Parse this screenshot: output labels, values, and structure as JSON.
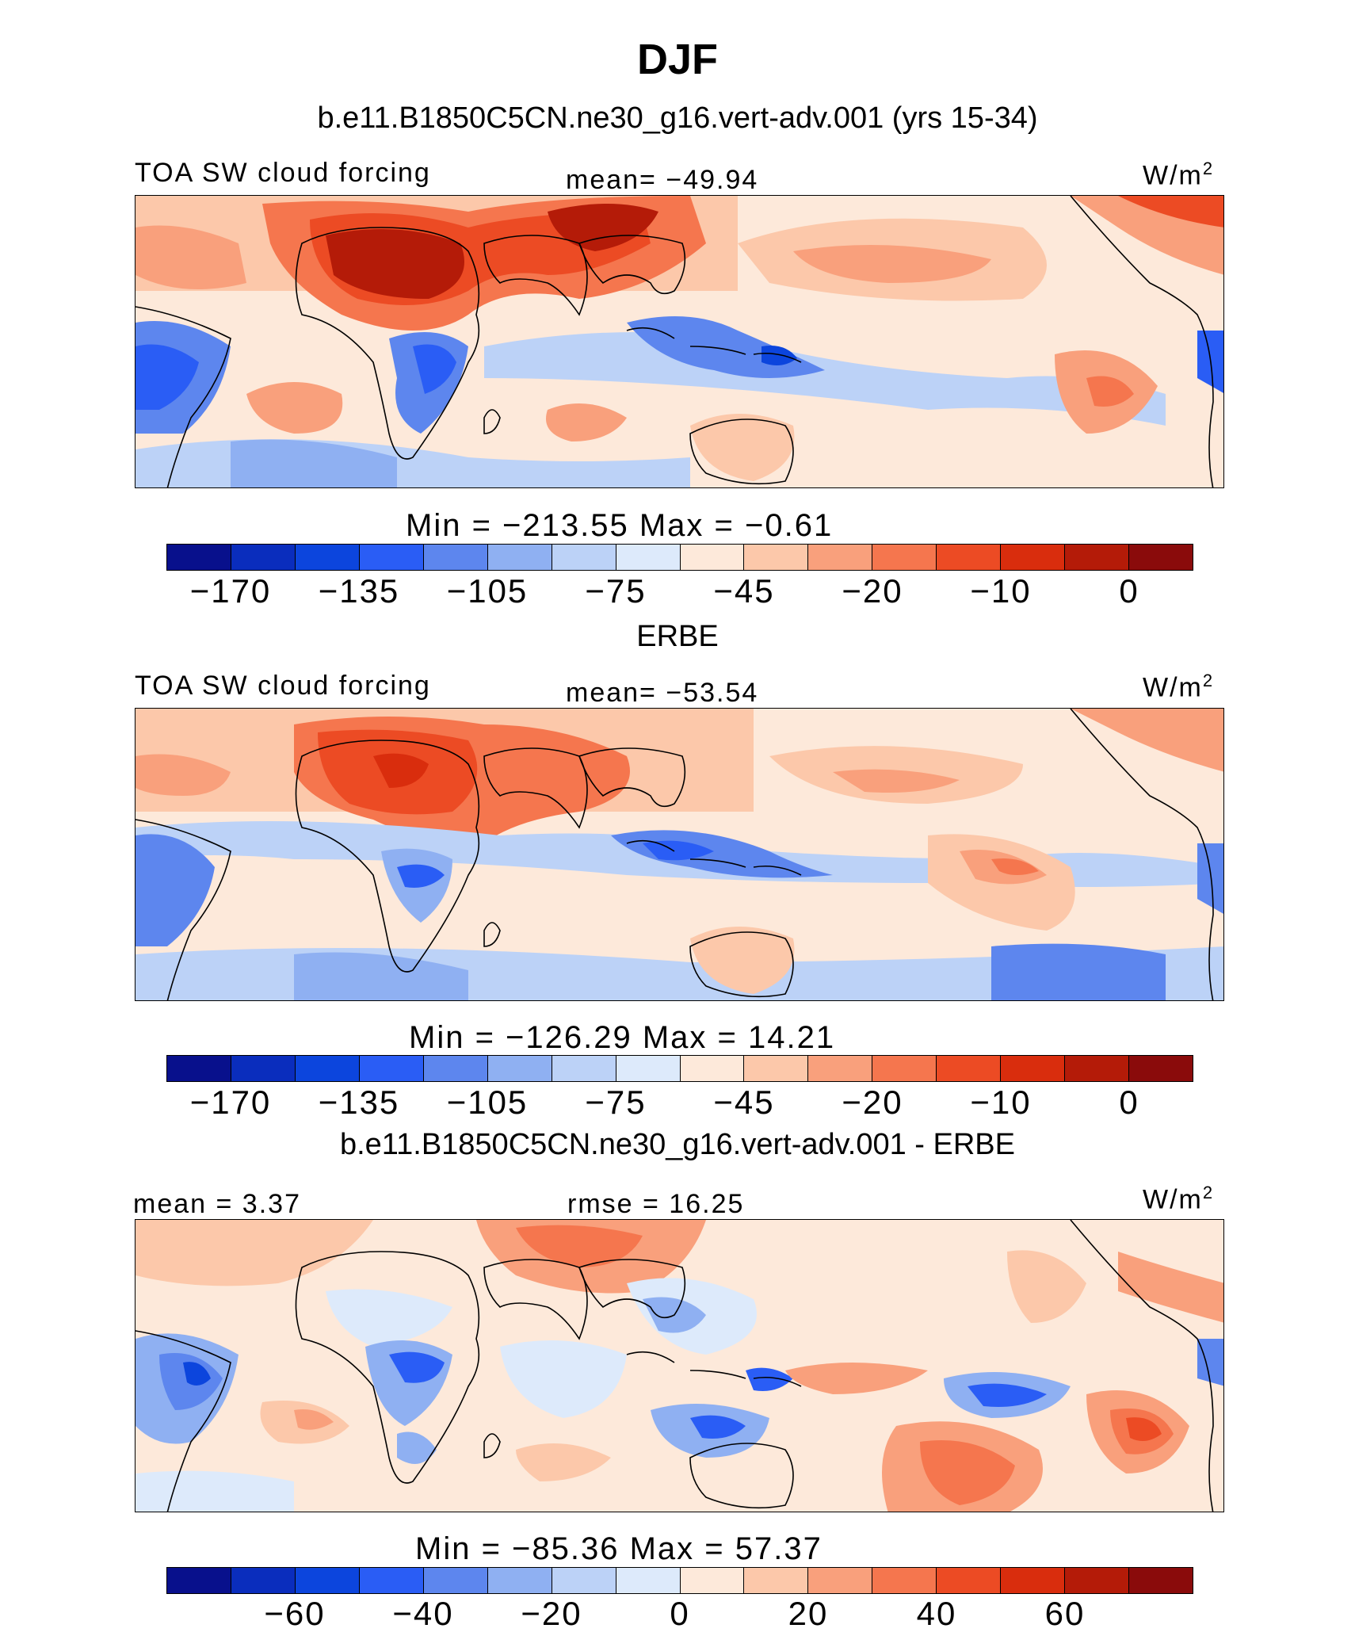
{
  "title": "DJF",
  "panels": [
    {
      "id": "model",
      "heading": "b.e11.B1850C5CN.ne30_g16.vert-adv.001 (yrs 15-34)",
      "left_label": "TOA SW cloud forcing",
      "center_label": "mean=  −49.94",
      "units": "W/m",
      "units_sup": "2",
      "stats": "Min  =  −213.55  Max  =   −0.61",
      "colorbar": {
        "colors": [
          "#08108c",
          "#0a2dbd",
          "#0c45dd",
          "#2a5df5",
          "#5d86ee",
          "#8fb0f2",
          "#bcd2f7",
          "#ddeafb",
          "#fde9da",
          "#fcc8aa",
          "#f9a07c",
          "#f5764e",
          "#ec4b24",
          "#d92d0d",
          "#b41b08",
          "#8a0b0b"
        ],
        "ticks": [
          "−170",
          "−135",
          "−105",
          "−75",
          "−45",
          "−20",
          "−10",
          "0"
        ]
      }
    },
    {
      "id": "obs",
      "heading": "ERBE",
      "left_label": "TOA SW cloud forcing",
      "center_label": "mean=  −53.54",
      "units": "W/m",
      "units_sup": "2",
      "stats": "Min  =  −126.29  Max  =   14.21",
      "colorbar": {
        "colors": [
          "#08108c",
          "#0a2dbd",
          "#0c45dd",
          "#2a5df5",
          "#5d86ee",
          "#8fb0f2",
          "#bcd2f7",
          "#ddeafb",
          "#fde9da",
          "#fcc8aa",
          "#f9a07c",
          "#f5764e",
          "#ec4b24",
          "#d92d0d",
          "#b41b08",
          "#8a0b0b"
        ],
        "ticks": [
          "−170",
          "−135",
          "−105",
          "−75",
          "−45",
          "−20",
          "−10",
          "0"
        ]
      }
    },
    {
      "id": "diff",
      "heading": "b.e11.B1850C5CN.ne30_g16.vert-adv.001 - ERBE",
      "left_label": "mean  =    3.37",
      "center_label": "rmse  =   16.25",
      "units": "W/m",
      "units_sup": "2",
      "stats": "Min  =  −85.36  Max  =   57.37",
      "colorbar": {
        "colors": [
          "#08108c",
          "#0a2dbd",
          "#0c45dd",
          "#2a5df5",
          "#5d86ee",
          "#8fb0f2",
          "#bcd2f7",
          "#ddeafb",
          "#fde9da",
          "#fcc8aa",
          "#f9a07c",
          "#f5764e",
          "#ec4b24",
          "#d92d0d",
          "#b41b08",
          "#8a0b0b"
        ],
        "ticks": [
          "−60",
          "−40",
          "−20",
          "0",
          "20",
          "40",
          "60"
        ]
      }
    }
  ],
  "chart_data": {
    "type": "heatmap",
    "title": "DJF",
    "panels": [
      {
        "title": "b.e11.B1850C5CN.ne30_g16.vert-adv.001 (yrs 15-34)",
        "variable": "TOA SW cloud forcing",
        "units": "W/m2",
        "mean": -49.94,
        "min": -213.55,
        "max": -0.61,
        "contour_levels": [
          -170,
          -150,
          -135,
          -120,
          -105,
          -90,
          -75,
          -60,
          -45,
          -30,
          -20,
          -15,
          -10,
          -5,
          0
        ]
      },
      {
        "title": "ERBE",
        "variable": "TOA SW cloud forcing",
        "units": "W/m2",
        "mean": -53.54,
        "min": -126.29,
        "max": 14.21,
        "contour_levels": [
          -170,
          -150,
          -135,
          -120,
          -105,
          -90,
          -75,
          -60,
          -45,
          -30,
          -20,
          -15,
          -10,
          -5,
          0
        ]
      },
      {
        "title": "b.e11.B1850C5CN.ne30_g16.vert-adv.001 - ERBE",
        "units": "W/m2",
        "mean": 3.37,
        "rmse": 16.25,
        "min": -85.36,
        "max": 57.37,
        "contour_levels": [
          -70,
          -60,
          -50,
          -40,
          -30,
          -20,
          -10,
          0,
          10,
          20,
          30,
          40,
          50,
          60,
          70
        ]
      }
    ]
  }
}
